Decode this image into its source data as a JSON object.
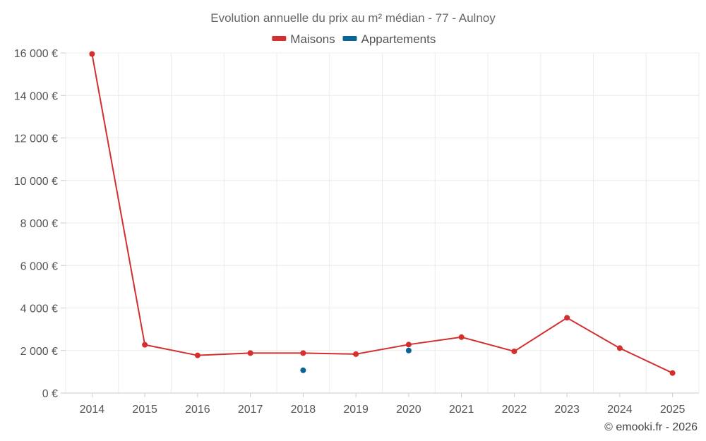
{
  "chart_data": {
    "type": "line",
    "title": "Evolution annuelle du prix au m² médian - 77 - Aulnoy",
    "categories": [
      "2014",
      "2015",
      "2016",
      "2017",
      "2018",
      "2019",
      "2020",
      "2021",
      "2022",
      "2023",
      "2024",
      "2025"
    ],
    "series": [
      {
        "name": "Maisons",
        "color": "#d32f2f",
        "values": [
          15950,
          2270,
          1770,
          1880,
          1880,
          1830,
          2280,
          2630,
          1960,
          3540,
          2110,
          940
        ]
      },
      {
        "name": "Appartements",
        "color": "#0b6496",
        "values": [
          null,
          null,
          null,
          null,
          1070,
          null,
          2000,
          null,
          null,
          null,
          null,
          null
        ]
      }
    ],
    "ylim": [
      0,
      16000
    ],
    "yticks": [
      0,
      2000,
      4000,
      6000,
      8000,
      10000,
      12000,
      14000,
      16000
    ],
    "ytick_labels": [
      "0 €",
      "2 000 €",
      "4 000 €",
      "6 000 €",
      "8 000 €",
      "10 000 €",
      "12 000 €",
      "14 000 €",
      "16 000 €"
    ],
    "xlabel": "",
    "ylabel": "",
    "grid": true,
    "legend_position": "top-center"
  },
  "credit": "© emooki.fr - 2026"
}
